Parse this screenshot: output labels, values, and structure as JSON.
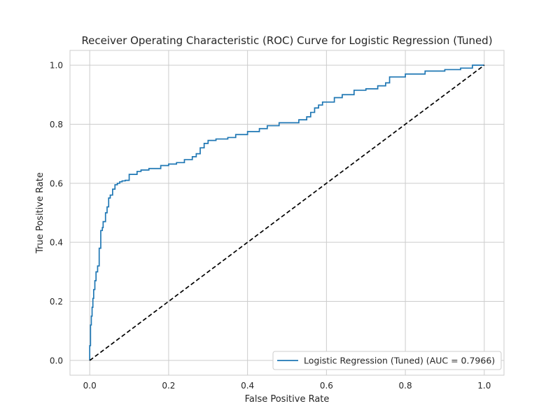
{
  "chart_data": {
    "type": "line",
    "title": "Receiver Operating Characteristic (ROC) Curve for Logistic Regression (Tuned)",
    "xlabel": "False Positive Rate",
    "ylabel": "True Positive Rate",
    "xlim": [
      -0.05,
      1.05
    ],
    "ylim": [
      -0.05,
      1.05
    ],
    "xticks": [
      0.0,
      0.2,
      0.4,
      0.6,
      0.8,
      1.0
    ],
    "xtick_labels": [
      "0.0",
      "0.2",
      "0.4",
      "0.6",
      "0.8",
      "1.0"
    ],
    "yticks": [
      0.0,
      0.2,
      0.4,
      0.6,
      0.8,
      1.0
    ],
    "ytick_labels": [
      "0.0",
      "0.2",
      "0.4",
      "0.6",
      "0.8",
      "1.0"
    ],
    "grid": true,
    "legend_position": "lower-right",
    "series": [
      {
        "name": "Logistic Regression (Tuned) (AUC = 0.7966)",
        "color": "#1f77b4",
        "style": "solid",
        "x": [
          0.0,
          0.0,
          0.002,
          0.002,
          0.004,
          0.004,
          0.006,
          0.006,
          0.008,
          0.008,
          0.01,
          0.01,
          0.013,
          0.013,
          0.016,
          0.016,
          0.02,
          0.02,
          0.024,
          0.024,
          0.028,
          0.028,
          0.032,
          0.032,
          0.034,
          0.034,
          0.04,
          0.04,
          0.044,
          0.044,
          0.048,
          0.048,
          0.052,
          0.052,
          0.058,
          0.058,
          0.064,
          0.064,
          0.07,
          0.07,
          0.076,
          0.076,
          0.082,
          0.082,
          0.09,
          0.09,
          0.1,
          0.1,
          0.12,
          0.12,
          0.13,
          0.13,
          0.15,
          0.15,
          0.18,
          0.18,
          0.2,
          0.2,
          0.22,
          0.22,
          0.24,
          0.24,
          0.26,
          0.26,
          0.27,
          0.27,
          0.28,
          0.28,
          0.29,
          0.29,
          0.3,
          0.3,
          0.32,
          0.32,
          0.35,
          0.35,
          0.37,
          0.37,
          0.4,
          0.4,
          0.43,
          0.43,
          0.45,
          0.45,
          0.48,
          0.48,
          0.53,
          0.53,
          0.55,
          0.55,
          0.56,
          0.56,
          0.57,
          0.57,
          0.58,
          0.58,
          0.59,
          0.59,
          0.62,
          0.62,
          0.64,
          0.64,
          0.67,
          0.67,
          0.7,
          0.7,
          0.73,
          0.73,
          0.75,
          0.75,
          0.76,
          0.76,
          0.8,
          0.8,
          0.85,
          0.85,
          0.9,
          0.9,
          0.94,
          0.94,
          0.97,
          0.97,
          1.0
        ],
        "y": [
          0.0,
          0.05,
          0.05,
          0.12,
          0.12,
          0.15,
          0.15,
          0.18,
          0.18,
          0.21,
          0.21,
          0.24,
          0.24,
          0.27,
          0.27,
          0.3,
          0.3,
          0.32,
          0.32,
          0.38,
          0.38,
          0.44,
          0.44,
          0.45,
          0.45,
          0.47,
          0.47,
          0.5,
          0.5,
          0.52,
          0.52,
          0.55,
          0.55,
          0.56,
          0.56,
          0.58,
          0.58,
          0.595,
          0.595,
          0.6,
          0.6,
          0.605,
          0.605,
          0.608,
          0.608,
          0.61,
          0.61,
          0.63,
          0.63,
          0.64,
          0.64,
          0.645,
          0.645,
          0.65,
          0.65,
          0.66,
          0.66,
          0.665,
          0.665,
          0.67,
          0.67,
          0.68,
          0.68,
          0.69,
          0.69,
          0.7,
          0.7,
          0.72,
          0.72,
          0.735,
          0.735,
          0.745,
          0.745,
          0.75,
          0.75,
          0.755,
          0.755,
          0.765,
          0.765,
          0.775,
          0.775,
          0.785,
          0.785,
          0.795,
          0.795,
          0.805,
          0.805,
          0.815,
          0.815,
          0.825,
          0.825,
          0.84,
          0.84,
          0.855,
          0.855,
          0.865,
          0.865,
          0.875,
          0.875,
          0.89,
          0.89,
          0.9,
          0.9,
          0.915,
          0.915,
          0.92,
          0.92,
          0.93,
          0.93,
          0.94,
          0.94,
          0.96,
          0.96,
          0.97,
          0.97,
          0.98,
          0.98,
          0.985,
          0.985,
          0.99,
          0.99,
          1.0,
          1.0
        ]
      },
      {
        "name": "",
        "color": "#000000",
        "style": "dashed",
        "x": [
          0.0,
          1.0
        ],
        "y": [
          0.0,
          1.0
        ]
      }
    ]
  }
}
